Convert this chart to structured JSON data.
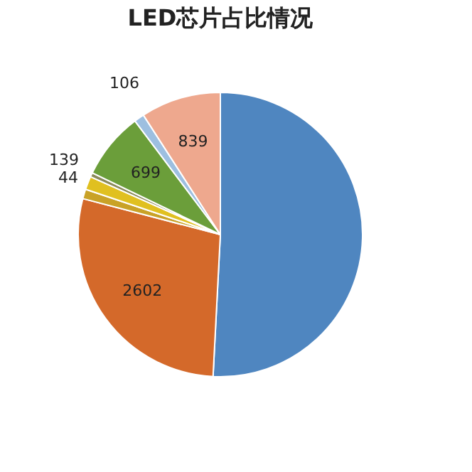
{
  "chart_data": {
    "type": "pie",
    "title": "LED芯片占比情况",
    "categories": [
      null,
      null,
      null,
      null,
      null,
      null,
      null,
      null
    ],
    "values": [
      4680,
      2602,
      100,
      139,
      44,
      699,
      106,
      839
    ],
    "value_labels": [
      null,
      "2602",
      null,
      "139",
      "44",
      "699",
      "106",
      "839"
    ],
    "colors": [
      "#4f86c0",
      "#d4692a",
      "#c9a227",
      "#e0c020",
      "#8a8a5a",
      "#6b9e3a",
      "#9dbfe0",
      "#eea88e"
    ],
    "legend": false
  }
}
